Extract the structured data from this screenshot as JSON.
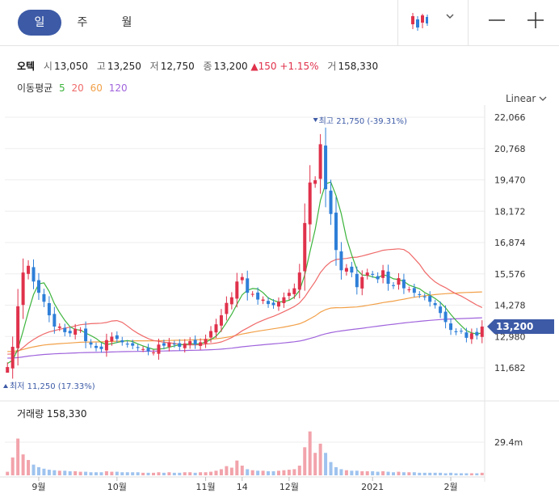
{
  "tabs": {
    "day": "일",
    "week": "주",
    "month": "월"
  },
  "quote": {
    "name": "오텍",
    "open_label": "시",
    "open": "13,050",
    "high_label": "고",
    "high": "13,250",
    "low_label": "저",
    "low": "12,750",
    "close_label": "종",
    "close": "13,200",
    "change": "▲150",
    "change_pct": "+1.15%",
    "volume_label": "거",
    "volume": "158,330"
  },
  "ma_legend": {
    "title": "이동평균",
    "ma5": "5",
    "ma20": "20",
    "ma60": "60",
    "ma120": "120"
  },
  "scale_mode": "Linear",
  "volume_panel": {
    "label": "거래량",
    "value": "158,330"
  },
  "colors": {
    "up": "#e0314b",
    "down": "#2e7fd8",
    "ma5": "#3cb43c",
    "ma20": "#f06a6a",
    "ma60": "#f2a048",
    "ma120": "#a064dc",
    "accent": "#3c5aa6"
  },
  "chart_data": {
    "type": "candlestick",
    "price_axis": {
      "ticks": [
        "22,066",
        "20,768",
        "19,470",
        "18,172",
        "16,874",
        "15,576",
        "14,278",
        "12,980",
        "11,682"
      ],
      "range": [
        10900,
        22500
      ]
    },
    "volume_axis": {
      "tick": "29.4m"
    },
    "x_ticks": [
      "9월",
      "10월",
      "11월",
      "14",
      "12월",
      "2021",
      "2월"
    ],
    "last_price_tag": "13,200",
    "max_marker": "최고 21,750 (-39.31%)",
    "min_marker": "최저 11,250 (17.33%)",
    "closes": [
      11400,
      12300,
      14100,
      15600,
      15900,
      15200,
      14700,
      14300,
      13700,
      13200,
      13200,
      12950,
      12900,
      13100,
      13050,
      12550,
      12400,
      12250,
      12200,
      12600,
      12750,
      12650,
      12500,
      12400,
      12350,
      12250,
      12200,
      12100,
      12050,
      12400,
      12350,
      12500,
      12400,
      12300,
      12450,
      12550,
      12400,
      12500,
      12650,
      13000,
      13300,
      13700,
      14250,
      14500,
      15200,
      15400,
      14700,
      14650,
      14400,
      14400,
      14200,
      14150,
      14300,
      14500,
      14700,
      14900,
      15600,
      17800,
      19600,
      19700,
      21300,
      19300,
      18200,
      16600,
      15700,
      15800,
      15600,
      14950,
      15400,
      15600,
      15500,
      15300,
      15700,
      15100,
      15000,
      15350,
      14900,
      14850,
      14700,
      14600,
      14500,
      14300,
      14150,
      13800,
      13400,
      13050,
      12950,
      13000,
      12700,
      12900,
      12800,
      13200
    ],
    "volumes": [
      0.7,
      3.5,
      7.2,
      4.1,
      3.0,
      2.1,
      1.6,
      1.3,
      1.1,
      1.0,
      0.9,
      0.9,
      0.8,
      0.8,
      0.7,
      0.7,
      0.6,
      0.6,
      0.6,
      0.8,
      0.7,
      0.7,
      0.6,
      0.6,
      0.6,
      0.6,
      0.5,
      0.5,
      0.5,
      0.6,
      0.5,
      0.6,
      0.5,
      0.5,
      0.6,
      0.6,
      0.5,
      0.6,
      0.6,
      0.7,
      0.9,
      1.2,
      1.8,
      1.5,
      2.9,
      1.9,
      1.2,
      1.0,
      0.9,
      0.9,
      0.8,
      0.8,
      0.9,
      1.0,
      1.1,
      1.2,
      1.9,
      5.5,
      8.6,
      4.4,
      6.2,
      4.4,
      2.6,
      1.6,
      1.2,
      1.0,
      0.9,
      0.9,
      0.8,
      0.8,
      0.8,
      0.7,
      0.8,
      0.7,
      0.6,
      0.7,
      0.6,
      0.6,
      0.6,
      0.5,
      0.5,
      0.5,
      0.5,
      0.5,
      0.4,
      0.5,
      0.4,
      0.4,
      0.4,
      0.4,
      0.4,
      0.5
    ]
  }
}
